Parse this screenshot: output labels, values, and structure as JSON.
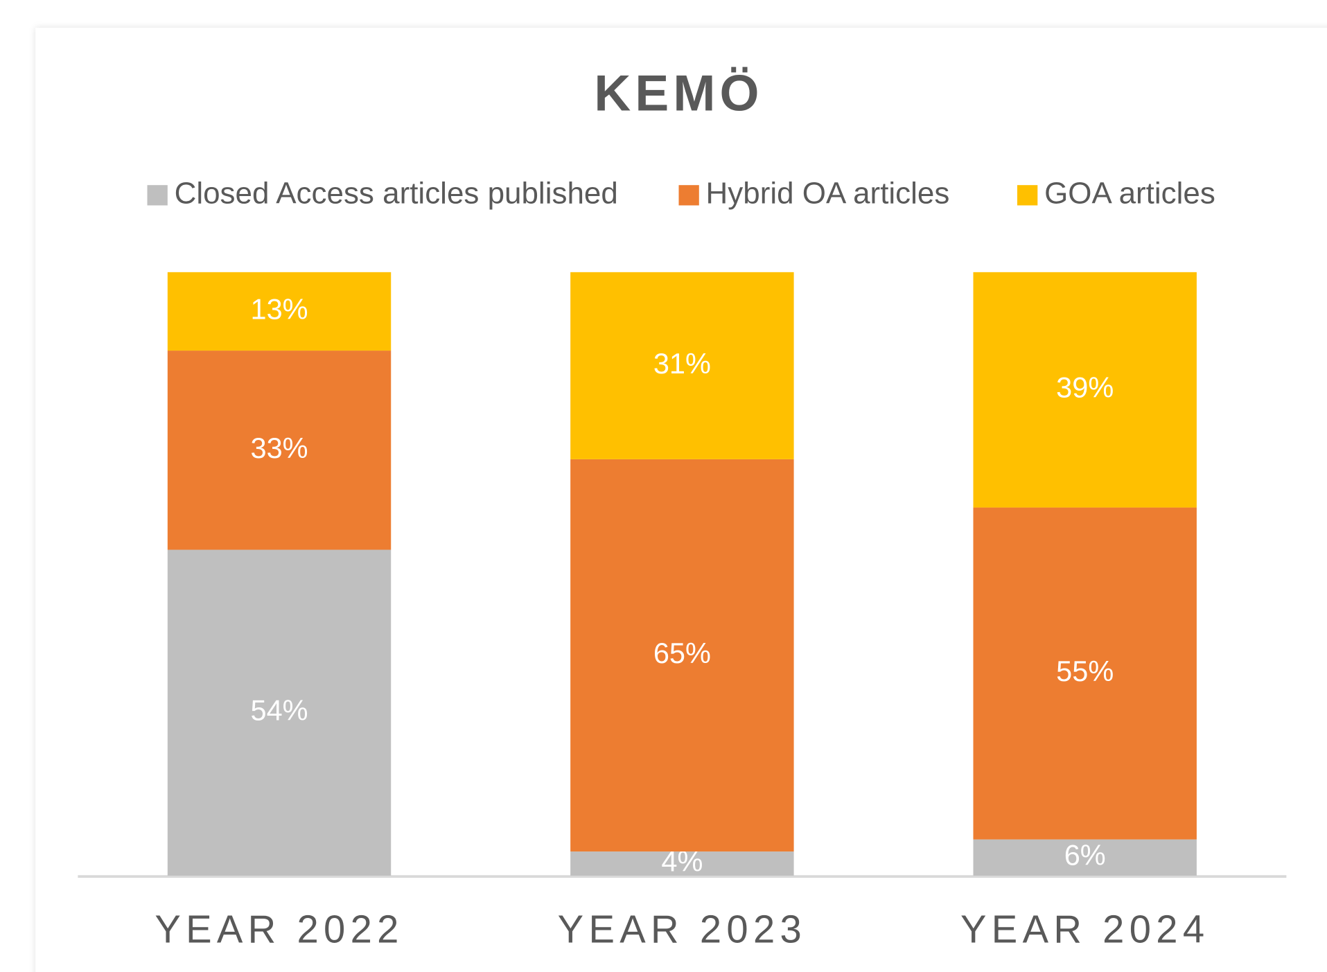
{
  "chart_data": {
    "type": "stacked_bar",
    "title": "KEMÖ",
    "categories": [
      "YEAR 2022",
      "YEAR 2023",
      "YEAR 2024"
    ],
    "series": [
      {
        "name": "Closed Access articles published",
        "color": "#bfbfbf",
        "values": [
          54,
          4,
          6
        ],
        "value_labels": [
          "54%",
          "4%",
          "6%"
        ]
      },
      {
        "name": "Hybrid OA articles",
        "color": "#ed7d31",
        "values": [
          33,
          65,
          55
        ],
        "value_labels": [
          "33%",
          "65%",
          "55%"
        ]
      },
      {
        "name": "GOA articles",
        "color": "#ffc000",
        "values": [
          13,
          31,
          39
        ],
        "value_labels": [
          "13%",
          "31%",
          "39%"
        ]
      }
    ],
    "legend": "top"
  }
}
